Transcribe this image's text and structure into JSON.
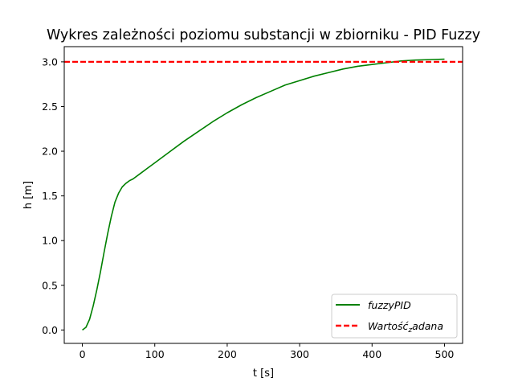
{
  "chart_data": {
    "type": "line",
    "title": "Wykres zależności poziomu substancji w zbiorniku - PID Fuzzy",
    "xlabel": "t [s]",
    "ylabel": "h [m]",
    "xlim": [
      -25,
      525
    ],
    "ylim": [
      -0.15,
      3.17
    ],
    "xticks": [
      0,
      100,
      200,
      300,
      400,
      500
    ],
    "yticks": [
      0.0,
      0.5,
      1.0,
      1.5,
      2.0,
      2.5,
      3.0
    ],
    "grid": false,
    "legend_position": "lower-right",
    "series": [
      {
        "name": "fuzzyPID",
        "color": "#008000",
        "style": "solid",
        "x": [
          0,
          5,
          10,
          15,
          20,
          25,
          30,
          35,
          40,
          45,
          50,
          55,
          60,
          65,
          70,
          80,
          90,
          100,
          120,
          140,
          160,
          180,
          200,
          220,
          240,
          260,
          280,
          300,
          320,
          340,
          360,
          380,
          400,
          420,
          440,
          460,
          480,
          500
        ],
        "y": [
          0.0,
          0.03,
          0.12,
          0.27,
          0.45,
          0.65,
          0.87,
          1.08,
          1.27,
          1.43,
          1.53,
          1.6,
          1.64,
          1.67,
          1.69,
          1.75,
          1.81,
          1.87,
          1.99,
          2.11,
          2.22,
          2.33,
          2.43,
          2.52,
          2.6,
          2.67,
          2.74,
          2.79,
          2.84,
          2.88,
          2.92,
          2.95,
          2.97,
          2.99,
          3.01,
          3.02,
          3.025,
          3.03
        ]
      },
      {
        "name_parts": [
          "Wartość",
          "z",
          "adana"
        ],
        "color": "#ff0000",
        "style": "dashed",
        "constant_y": 3.0
      }
    ]
  }
}
